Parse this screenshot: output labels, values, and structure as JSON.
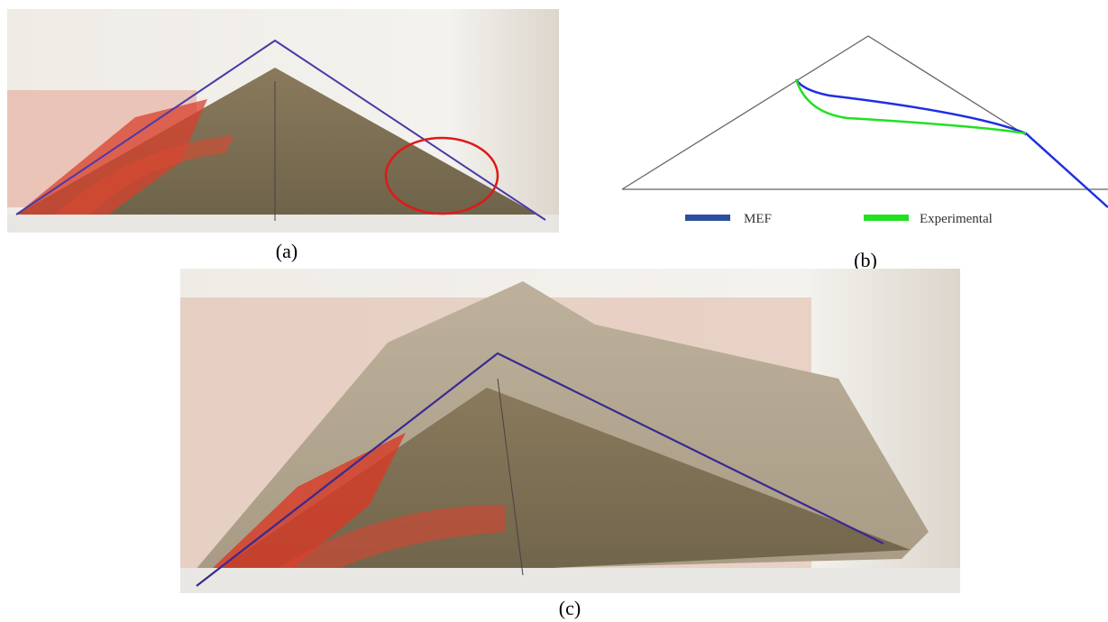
{
  "panels": [
    {
      "label": "(a)"
    },
    {
      "label": "(b)",
      "legend": [
        "MEF",
        "Experimental"
      ]
    },
    {
      "label": "(c)"
    }
  ]
}
